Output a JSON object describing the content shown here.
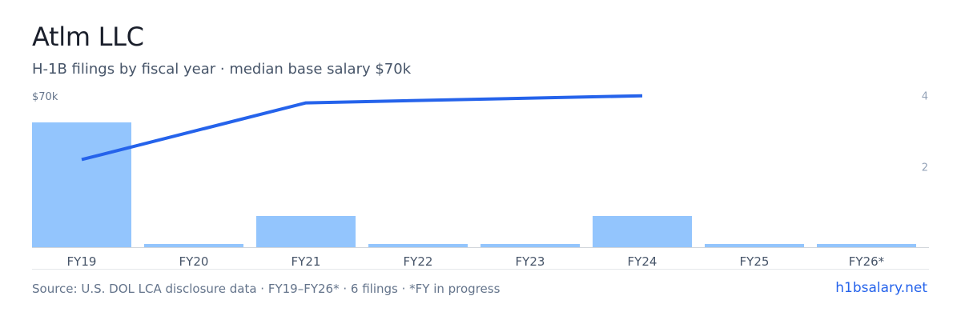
{
  "header": {
    "title": "Atlm LLC",
    "subtitle": "H-1B filings by fiscal year · median base salary $70k"
  },
  "footer": {
    "source": "Source: U.S. DOL LCA disclosure data · FY19–FY26* · 6 filings · *FY in progress",
    "site": "h1bsalary.net"
  },
  "colors": {
    "bar": "#93c5fd",
    "line": "#2563eb",
    "axis_text": "#64748b",
    "right_axis_text": "#94a3b8",
    "baseline": "#d1d5db"
  },
  "chart_data": {
    "type": "bar",
    "categories": [
      "FY19",
      "FY20",
      "FY21",
      "FY22",
      "FY23",
      "FY24",
      "FY25",
      "FY26*"
    ],
    "values": [
      4,
      0,
      1,
      0,
      0,
      1,
      0,
      0
    ],
    "left_axis": {
      "tick_labels": [
        "$70k"
      ]
    },
    "right_axis": {
      "ticks": [
        2,
        4
      ],
      "ylim": [
        0,
        4
      ]
    },
    "line_series": {
      "categories": [
        "FY19",
        "FY21",
        "FY24"
      ],
      "values": [
        2.2,
        3.8,
        4.0
      ]
    },
    "grid": false
  }
}
